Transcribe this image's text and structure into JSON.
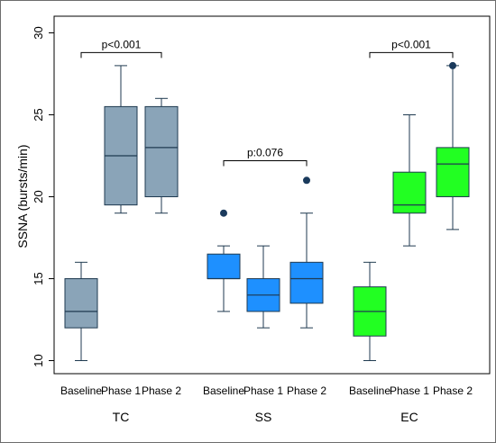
{
  "chart_data": {
    "type": "box",
    "title": "",
    "ylabel": "SSNA (bursts/min)",
    "ylim": [
      9.5,
      30.5
    ],
    "yticks": [
      10,
      15,
      20,
      25,
      30
    ],
    "grid": false,
    "groups": [
      {
        "name": "TC",
        "color": "#8aa4b8",
        "boxes": [
          {
            "label": "Baseline",
            "min": 10,
            "q1": 12,
            "median": 13,
            "q3": 15,
            "max": 16,
            "outliers": []
          },
          {
            "label": "Phase 1",
            "min": 19,
            "q1": 19.5,
            "median": 22.5,
            "q3": 25.5,
            "max": 28,
            "outliers": []
          },
          {
            "label": "Phase 2",
            "min": 19,
            "q1": 20,
            "median": 23,
            "q3": 25.5,
            "max": 26,
            "outliers": []
          }
        ],
        "annotation": {
          "text": "p<0.001",
          "from": 0,
          "to": 2,
          "y": 28.8
        }
      },
      {
        "name": "SS",
        "color": "#1e90ff",
        "boxes": [
          {
            "label": "Baseline",
            "min": 13,
            "q1": 15,
            "median": 15,
            "q3": 16.5,
            "max": 17,
            "outliers": [
              19
            ]
          },
          {
            "label": "Phase 1",
            "min": 12,
            "q1": 13,
            "median": 14,
            "q3": 15,
            "max": 17,
            "outliers": []
          },
          {
            "label": "Phase 2",
            "min": 12,
            "q1": 13.5,
            "median": 15,
            "q3": 16,
            "max": 19,
            "outliers": [
              21
            ]
          }
        ],
        "annotation": {
          "text": "p:0.076",
          "from": 0,
          "to": 2,
          "y": 22.2
        }
      },
      {
        "name": "EC",
        "color": "#22ff22",
        "boxes": [
          {
            "label": "Baseline",
            "min": 10,
            "q1": 11.5,
            "median": 13,
            "q3": 14.5,
            "max": 16,
            "outliers": []
          },
          {
            "label": "Phase 1",
            "min": 17,
            "q1": 19,
            "median": 19.5,
            "q3": 21.5,
            "max": 25,
            "outliers": []
          },
          {
            "label": "Phase 2",
            "min": 18,
            "q1": 20,
            "median": 22,
            "q3": 23,
            "max": 28,
            "outliers": [
              28
            ]
          }
        ],
        "annotation": {
          "text": "p<0.001",
          "from": 0,
          "to": 2,
          "y": 28.8
        }
      }
    ]
  }
}
